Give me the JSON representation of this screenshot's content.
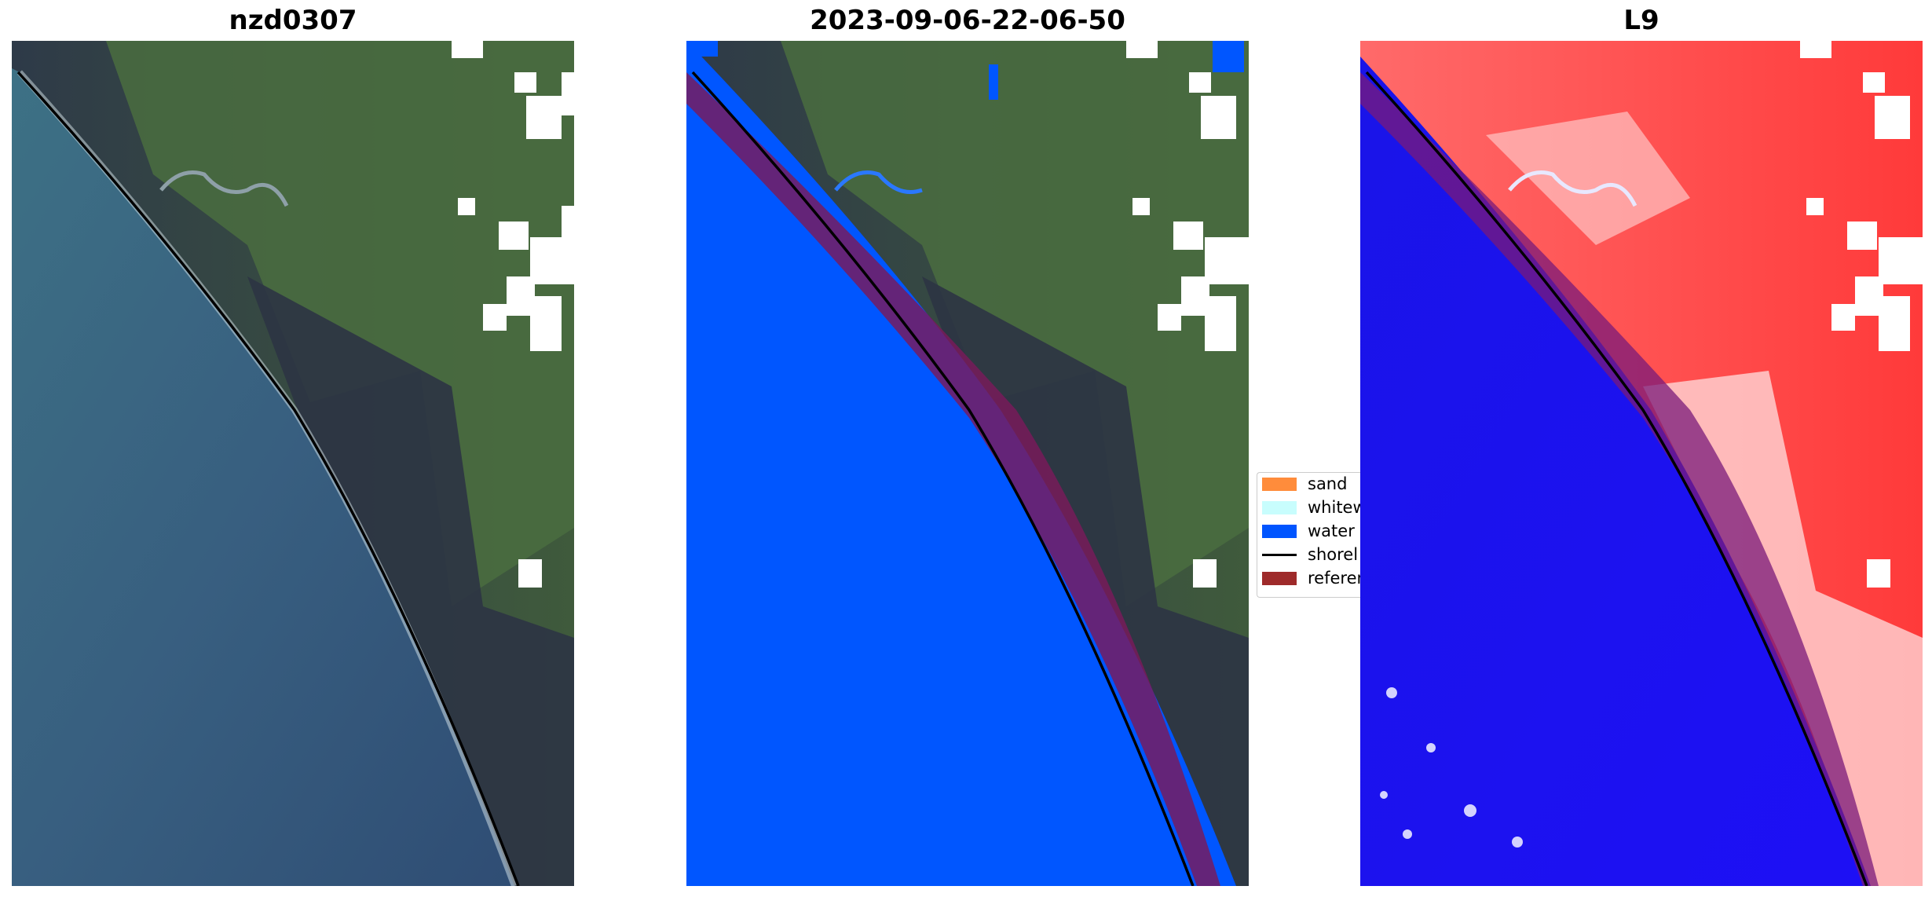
{
  "panels": [
    {
      "title": "nzd0307"
    },
    {
      "title": "2023-09-06-22-06-50"
    },
    {
      "title": "L9"
    }
  ],
  "legend": {
    "items": [
      {
        "label": "sand",
        "color": "#ff8c3b"
      },
      {
        "label": "whitew",
        "color": "#c8fdfd"
      },
      {
        "label": "water",
        "color": "#0055ff"
      },
      {
        "label": "shorel",
        "color": "#000000"
      },
      {
        "label": "referen",
        "color": "#9e2a2a"
      }
    ]
  },
  "colors": {
    "sea_rgb": "#3f6a8a",
    "land_rgb": "#3c5a3a",
    "water_class": "#0056ff",
    "reference_band": "#7a1a5a",
    "ndwi_water": "#1a10f0",
    "ndwi_land": "#ff4a4a",
    "shoreline": "#000000"
  }
}
